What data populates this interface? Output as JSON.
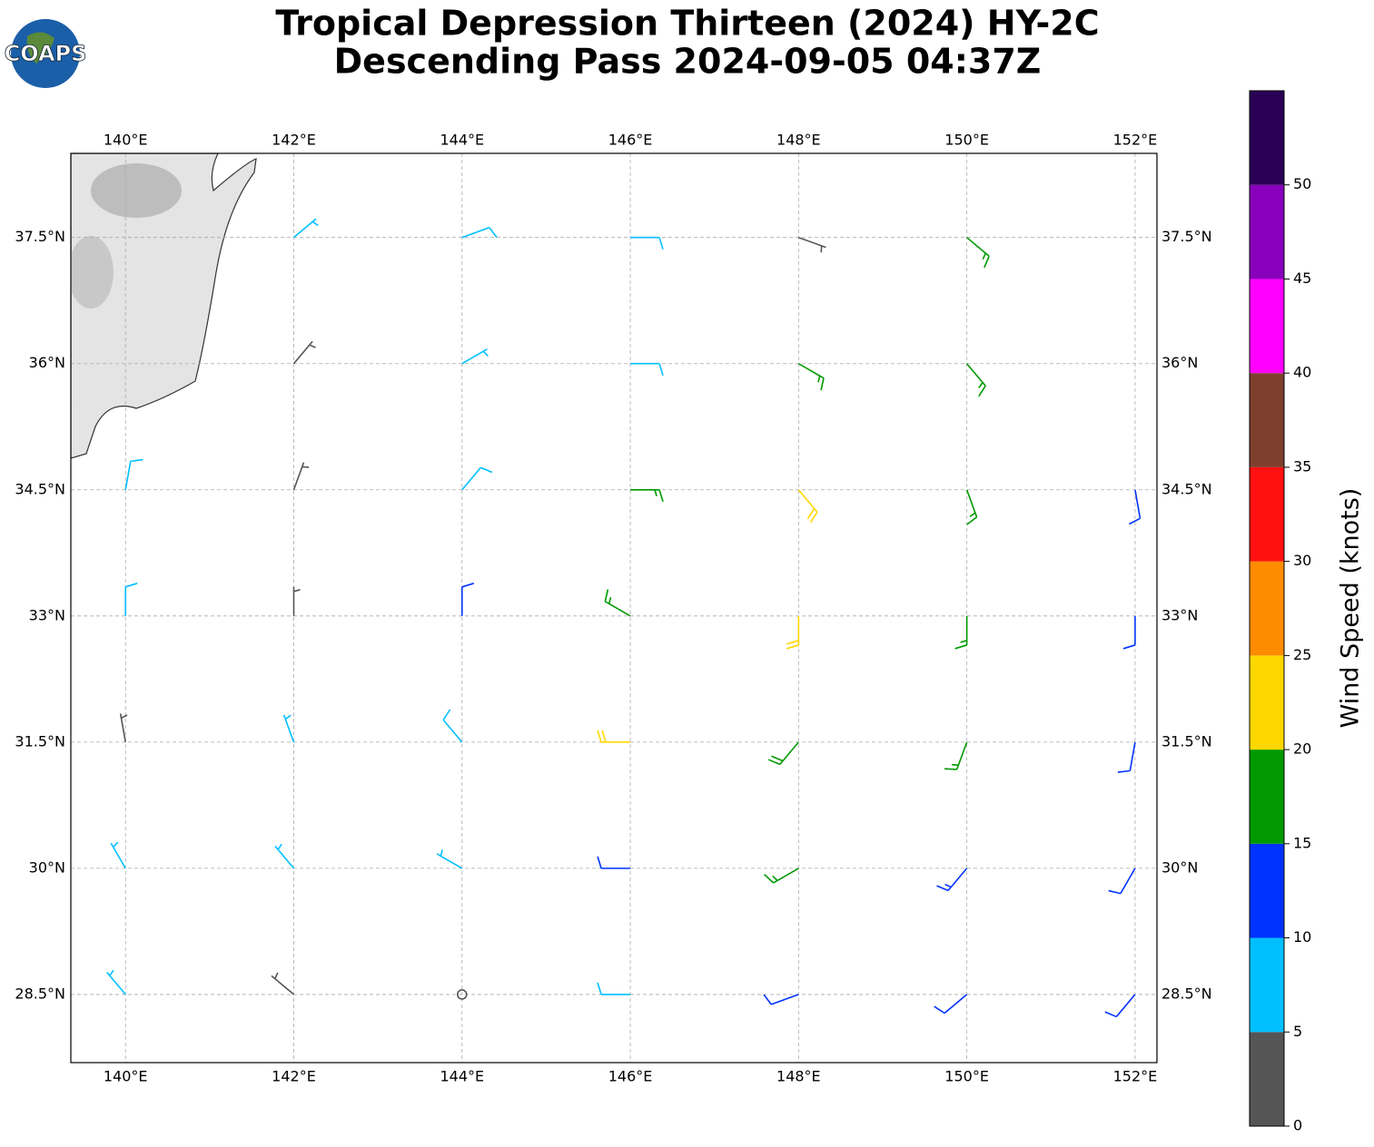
{
  "chart_data": {
    "type": "barbs",
    "title_lines": [
      "Tropical Depression Thirteen (2024) HY-2C",
      "Descending Pass 2024-09-05 04:37Z"
    ],
    "logo": "COAPS",
    "xlim": [
      139.35,
      152.26
    ],
    "ylim": [
      27.69,
      38.5
    ],
    "xticks": [
      {
        "value": 140,
        "label": "140°E"
      },
      {
        "value": 142,
        "label": "142°E"
      },
      {
        "value": 144,
        "label": "144°E"
      },
      {
        "value": 146,
        "label": "146°E"
      },
      {
        "value": 148,
        "label": "148°E"
      },
      {
        "value": 150,
        "label": "150°E"
      },
      {
        "value": 152,
        "label": "152°E"
      }
    ],
    "yticks": [
      {
        "value": 28.5,
        "label": "28.5°N"
      },
      {
        "value": 30,
        "label": "30°N"
      },
      {
        "value": 31.5,
        "label": "31.5°N"
      },
      {
        "value": 33,
        "label": "33°N"
      },
      {
        "value": 34.5,
        "label": "34.5°N"
      },
      {
        "value": 36,
        "label": "36°N"
      },
      {
        "value": 37.5,
        "label": "37.5°N"
      }
    ],
    "grid": true,
    "barbs": {
      "lon": [
        142,
        144,
        146,
        148,
        150,
        142,
        144,
        146,
        148,
        150,
        140,
        142,
        144,
        146,
        148,
        150,
        152,
        140,
        142,
        144,
        146,
        148,
        150,
        152,
        140,
        142,
        144,
        146,
        148,
        150,
        152,
        140,
        142,
        144,
        146,
        148,
        150,
        152,
        140,
        142,
        144,
        146,
        148,
        150,
        152
      ],
      "lat": [
        37.5,
        37.5,
        37.5,
        37.5,
        37.5,
        36,
        36,
        36,
        36,
        36,
        34.5,
        34.5,
        34.5,
        34.5,
        34.5,
        34.5,
        34.5,
        33,
        33,
        33,
        33,
        33,
        33,
        33,
        31.5,
        31.5,
        31.5,
        31.5,
        31.5,
        31.5,
        31.5,
        30,
        30,
        30,
        30,
        30,
        30,
        30,
        28.5,
        28.5,
        28.5,
        28.5,
        28.5,
        28.5,
        28.5
      ],
      "speed": [
        7,
        8,
        8,
        3,
        17,
        4,
        7,
        9,
        17,
        17,
        8,
        3,
        8,
        17,
        22,
        17,
        12,
        8,
        3,
        10,
        17,
        20,
        17,
        12,
        3,
        7,
        8,
        20,
        18,
        17,
        12,
        7,
        7,
        7,
        10,
        17,
        13,
        12,
        7,
        3,
        2,
        8,
        12,
        12,
        12
      ],
      "direction": [
        50,
        70,
        90,
        110,
        130,
        40,
        60,
        90,
        120,
        140,
        10,
        20,
        40,
        90,
        140,
        160,
        170,
        360,
        360,
        360,
        300,
        180,
        180,
        180,
        350,
        340,
        320,
        270,
        220,
        200,
        190,
        330,
        320,
        300,
        270,
        240,
        220,
        210,
        320,
        310,
        290,
        270,
        250,
        230,
        220
      ]
    },
    "colorbar": {
      "label": "Wind Speed (knots)",
      "ylim": [
        0,
        55
      ],
      "yticks": [
        0,
        5,
        10,
        15,
        20,
        25,
        30,
        35,
        40,
        45,
        50
      ],
      "levels": [
        0,
        5,
        10,
        15,
        20,
        25,
        30,
        35,
        40,
        45,
        50,
        55
      ],
      "colors": [
        "#555555",
        "#00bfff",
        "#0033ff",
        "#009900",
        "#ffd700",
        "#ff8c00",
        "#ff1111",
        "#7f3f2f",
        "#ff00ff",
        "#8800bb",
        "#2a0055"
      ]
    }
  }
}
